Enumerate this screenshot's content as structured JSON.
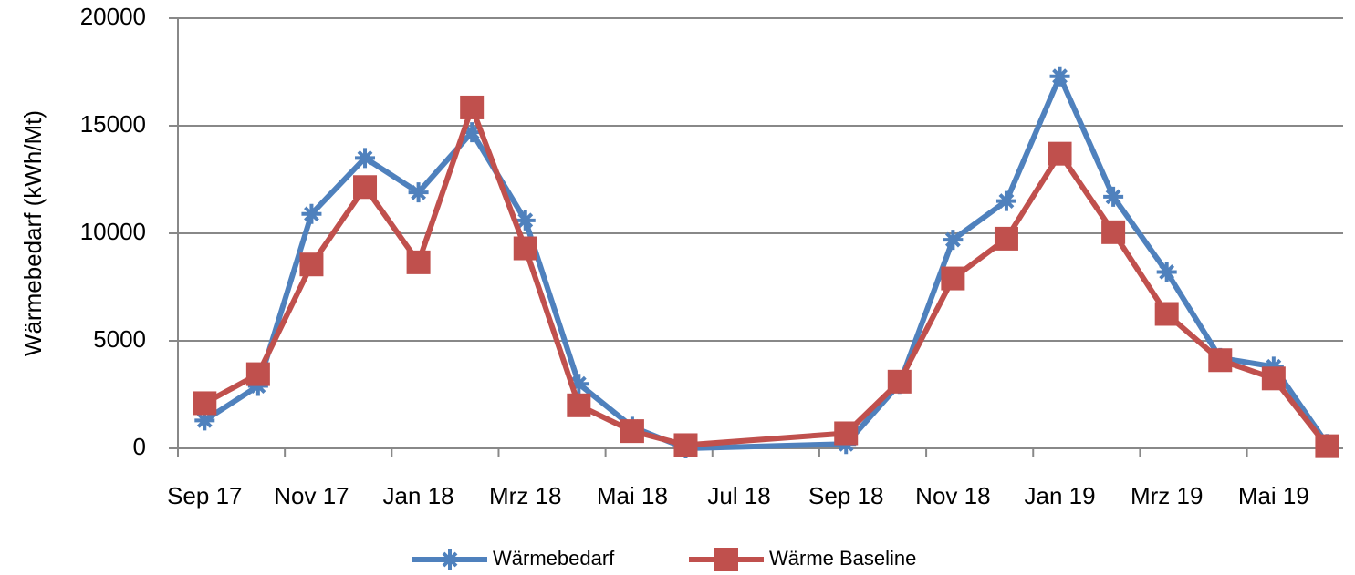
{
  "chart_data": {
    "type": "line",
    "y_label": "Wärmebedarf (kWh/Mt)",
    "categories": [
      "Sep 17",
      null,
      "Nov 17",
      null,
      "Jan 18",
      null,
      "Mrz 18",
      null,
      "Mai 18",
      null,
      "Jul 18",
      null,
      "Sep 18",
      null,
      "Nov 18",
      null,
      "Jan 19",
      null,
      "Mrz 19",
      null,
      "Mai 19",
      null
    ],
    "series": [
      {
        "name": "Wärmebedarf",
        "color": "#4f81bd",
        "marker": "star",
        "values": [
          1300,
          2900,
          10900,
          13500,
          11900,
          14700,
          10600,
          3000,
          1000,
          0,
          null,
          null,
          200,
          3000,
          9700,
          11500,
          17300,
          11700,
          8200,
          4200,
          3800,
          200
        ]
      },
      {
        "name": "Wärme Baseline",
        "color": "#c0504d",
        "marker": "square",
        "values": [
          2100,
          3450,
          8550,
          12150,
          8650,
          15850,
          9300,
          2000,
          800,
          150,
          null,
          null,
          700,
          3100,
          7900,
          9750,
          13700,
          10050,
          6250,
          4100,
          3250,
          100
        ]
      }
    ],
    "ylim": [
      0,
      20000
    ],
    "yticks": [
      0,
      5000,
      10000,
      15000,
      20000
    ],
    "grid": true,
    "legend": "bottom"
  }
}
